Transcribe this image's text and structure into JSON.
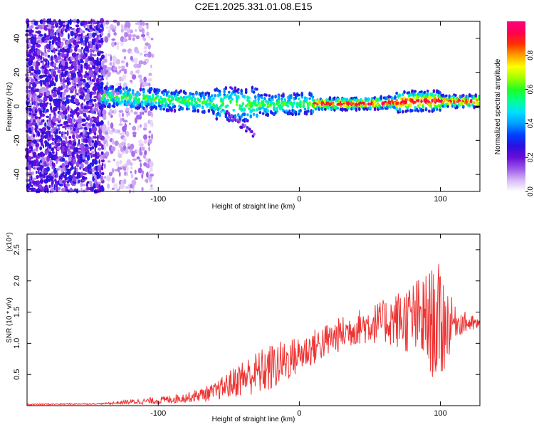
{
  "figure": {
    "title": "C2E1.2025.331.01.08.E15"
  },
  "chart_data": [
    {
      "type": "heatmap",
      "title": "C2E1.2025.331.01.08.E15",
      "xlabel": "Height of straight line (km)",
      "ylabel": "Frequency (Hz)",
      "xlim": [
        -193,
        128
      ],
      "ylim": [
        -50,
        50
      ],
      "x_ticks": [
        -100,
        0,
        100
      ],
      "x_tick_labels": [
        "-100",
        "0",
        "100"
      ],
      "y_ticks": [
        -40,
        -20,
        0,
        20,
        40
      ],
      "y_tick_labels": [
        "-40",
        "-20",
        "0",
        "20",
        "40"
      ],
      "colorbar": {
        "label": "Normalized spectral amplitude",
        "range": [
          0.0,
          1.0
        ],
        "ticks": [
          0.0,
          0.2,
          0.4,
          0.6,
          0.8
        ],
        "tick_labels": [
          "0.0",
          "0.2",
          "0.4",
          "0.6",
          "0.8"
        ],
        "colormap": [
          "#ffffff",
          "#d6b8f5",
          "#9b59e8",
          "#6a0dd9",
          "#2a10e0",
          "#0040ff",
          "#00a0ff",
          "#00e0ff",
          "#00ff90",
          "#20ff20",
          "#a0ff00",
          "#ffff00",
          "#ffa000",
          "#ff3000",
          "#ff0050",
          "#ff0080"
        ]
      },
      "band_center_hz": [
        {
          "x": -140,
          "f": 6
        },
        {
          "x": -120,
          "f": 5
        },
        {
          "x": -100,
          "f": 4
        },
        {
          "x": -80,
          "f": 3
        },
        {
          "x": -60,
          "f": 2
        },
        {
          "x": -40,
          "f": 1
        },
        {
          "x": -20,
          "f": 1
        },
        {
          "x": 0,
          "f": 1.5
        },
        {
          "x": 20,
          "f": 1.5
        },
        {
          "x": 40,
          "f": 1.5
        },
        {
          "x": 60,
          "f": 2
        },
        {
          "x": 80,
          "f": 3
        },
        {
          "x": 100,
          "f": 3
        },
        {
          "x": 128,
          "f": 3
        }
      ]
    },
    {
      "type": "line",
      "xlabel": "Height of straight line (km)",
      "ylabel": "SNR (10 * v/v)",
      "y_multiplier": "(x10⁴)",
      "xlim": [
        -193,
        128
      ],
      "ylim": [
        0,
        2.75
      ],
      "x_ticks": [
        -100,
        0,
        100
      ],
      "x_tick_labels": [
        "-100",
        "0",
        "100"
      ],
      "y_ticks": [
        0.5,
        1.0,
        1.5,
        2.0,
        2.5
      ],
      "y_tick_labels": [
        "0.5",
        "1.0",
        "1.5",
        "2.0",
        "2.5"
      ],
      "color": "#ee3333",
      "envelope": [
        {
          "x": -193,
          "mean": 0.02,
          "amp": 0.01
        },
        {
          "x": -140,
          "mean": 0.03,
          "amp": 0.01
        },
        {
          "x": -120,
          "mean": 0.06,
          "amp": 0.04
        },
        {
          "x": -100,
          "mean": 0.08,
          "amp": 0.06
        },
        {
          "x": -80,
          "mean": 0.13,
          "amp": 0.08
        },
        {
          "x": -60,
          "mean": 0.22,
          "amp": 0.14
        },
        {
          "x": -40,
          "mean": 0.45,
          "amp": 0.3
        },
        {
          "x": -20,
          "mean": 0.6,
          "amp": 0.4
        },
        {
          "x": 0,
          "mean": 0.82,
          "amp": 0.3
        },
        {
          "x": 20,
          "mean": 1.05,
          "amp": 0.28
        },
        {
          "x": 40,
          "mean": 1.25,
          "amp": 0.28
        },
        {
          "x": 60,
          "mean": 1.35,
          "amp": 0.35
        },
        {
          "x": 80,
          "mean": 1.4,
          "amp": 0.6
        },
        {
          "x": 100,
          "mean": 1.3,
          "amp": 1.0
        },
        {
          "x": 110,
          "mean": 1.35,
          "amp": 0.25
        },
        {
          "x": 128,
          "mean": 1.3,
          "amp": 0.08
        }
      ]
    }
  ]
}
